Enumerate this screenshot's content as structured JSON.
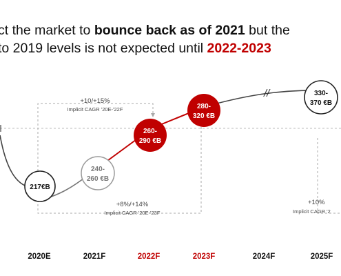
{
  "headline": {
    "l1_a": "ct the market to ",
    "l1_b": "bounce back as of 2021",
    "l1_c": " but the",
    "l2_a": "to 2019 levels is not expected until ",
    "l2_b": "2022-2023"
  },
  "colors": {
    "red": "#c00000",
    "line_dark": "#444444",
    "grey": "#999999"
  },
  "chart_data": {
    "type": "line",
    "categories": [
      "2020E",
      "2021F",
      "2022F",
      "2023F",
      "2024F",
      "2025F"
    ],
    "highlight_categories": [
      "2022F",
      "2023F"
    ],
    "points": [
      {
        "category": "2020E",
        "label": "217€B",
        "style": "actual"
      },
      {
        "category": "2021F",
        "label_1": "240-",
        "label_2": "260 €B",
        "style": "forecast"
      },
      {
        "category": "2022F",
        "label_1": "260-",
        "label_2": "290 €B",
        "style": "highlight"
      },
      {
        "category": "2023F",
        "label_1": "280-",
        "label_2": "320 €B",
        "style": "highlight"
      },
      {
        "category": "2025F",
        "label_1": "330-",
        "label_2": "370 €B",
        "style": "actual"
      }
    ],
    "values_low": [
      217,
      240,
      260,
      280,
      null,
      330
    ],
    "values_high": [
      217,
      260,
      290,
      320,
      null,
      370
    ],
    "annotations": [
      {
        "main": "+10/+15%",
        "sub": "Implicit CAGR '20E-'22F"
      },
      {
        "main": "+8%/+14%",
        "sub": "Implicit CAGR '20E-'23F"
      },
      {
        "main": "+10%",
        "sub": "Implicit CAGR '2"
      }
    ],
    "axis_break": "//"
  }
}
